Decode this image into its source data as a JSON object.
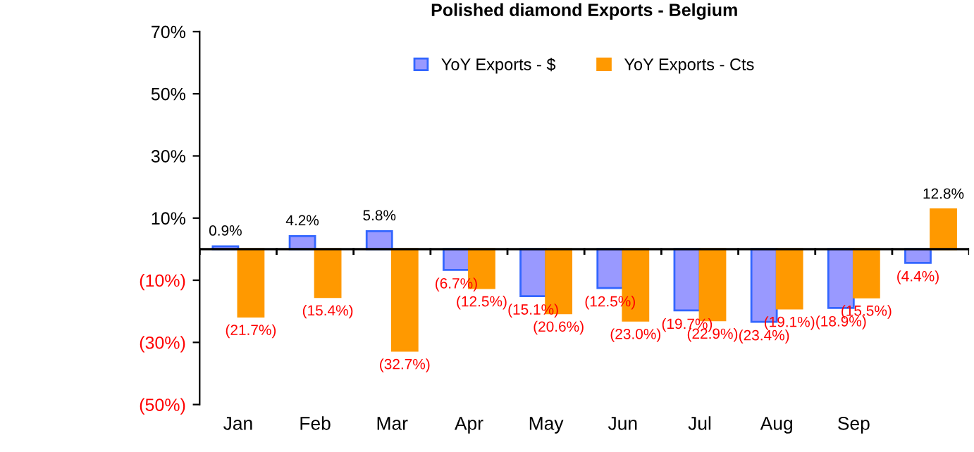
{
  "chart_data": {
    "type": "bar",
    "title": "Polished diamond Exports - Belgium",
    "categories": [
      "Jan",
      "Feb",
      "Mar",
      "Apr",
      "May",
      "Jun",
      "Jul",
      "Aug",
      "Sep",
      null
    ],
    "series": [
      {
        "name": "YoY Exports - $",
        "color": "#9999ff",
        "values": [
          0.9,
          4.2,
          5.8,
          -6.7,
          -15.1,
          -12.5,
          -19.7,
          -23.4,
          -18.9,
          -4.4
        ],
        "value_labels": [
          "0.9%",
          "4.2%",
          "5.8%",
          "(6.7%)",
          "(15.1%)",
          "(12.5%)",
          "(19.7%)",
          "(23.4%)",
          "(18.9%)",
          "(4.4%)"
        ]
      },
      {
        "name": "YoY Exports - Cts",
        "color": "#ff9900",
        "values": [
          -21.7,
          -15.4,
          -32.7,
          -12.5,
          -20.6,
          -23.0,
          -22.9,
          -19.1,
          -15.5,
          12.8
        ],
        "value_labels": [
          "(21.7%)",
          "(15.4%)",
          "(32.7%)",
          "(12.5%)",
          "(20.6%)",
          "(23.0%)",
          "(22.9%)",
          "(19.1%)",
          "(15.5%)",
          "12.8%"
        ]
      }
    ],
    "ylim": [
      -50,
      70
    ],
    "yticks": [
      {
        "value": -50,
        "label": "(50%)"
      },
      {
        "value": -30,
        "label": "(30%)"
      },
      {
        "value": -10,
        "label": "(10%)"
      },
      {
        "value": 10,
        "label": "10%"
      },
      {
        "value": 30,
        "label": "30%"
      },
      {
        "value": 50,
        "label": "50%"
      },
      {
        "value": 70,
        "label": "70%"
      }
    ],
    "grid": false,
    "legend": "top"
  }
}
